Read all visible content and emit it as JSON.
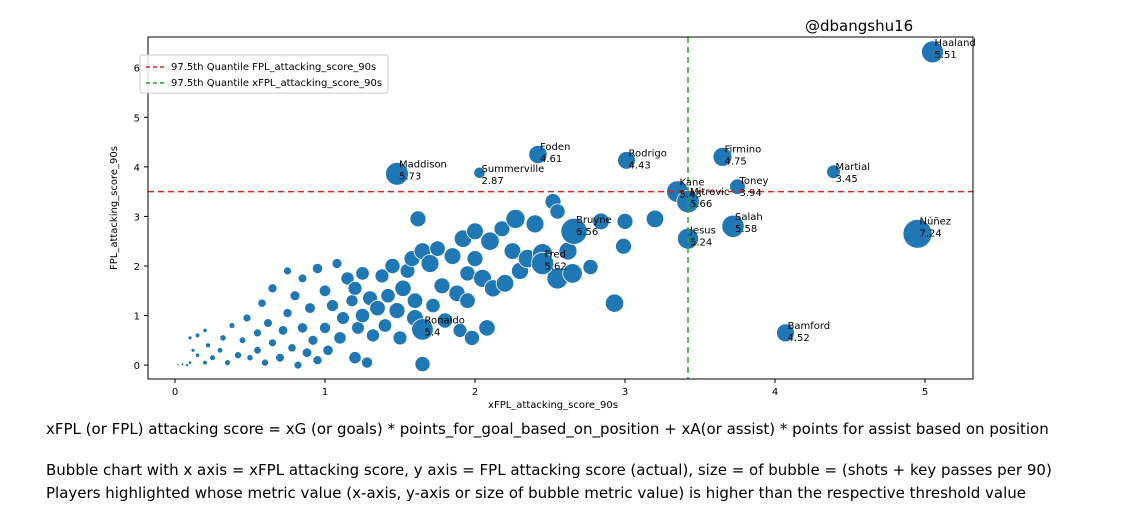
{
  "credit": "@dbangshu16",
  "notes": {
    "formula": "xFPL (or FPL) attacking score = xG (or goals) * points_for_goal_based_on_position + xA(or assist) * points for assist based on position",
    "desc1": "Bubble chart with x axis = xFPL attacking score, y axis = FPL attacking score (actual), size = of bubble = (shots + key passes per 90)",
    "desc2": "Players highlighted whose metric value (x-axis, y-axis or size of bubble metric value) is higher than the respective threshold value"
  },
  "chart_data": {
    "type": "scatter",
    "xlabel": "xFPL_attacking_score_90s",
    "ylabel": "FPL_attacking_score_90s",
    "xlim": [
      -0.18,
      5.32
    ],
    "ylim": [
      -0.28,
      6.62
    ],
    "xticks": [
      0,
      1,
      2,
      3,
      4,
      5
    ],
    "yticks": [
      0,
      1,
      2,
      3,
      4,
      5,
      6
    ],
    "grid": false,
    "legend_position": "top-left",
    "colors": {
      "bubble": "#1f77b4",
      "fpl_threshold": "#d62728",
      "xfpl_threshold": "#2ca02c"
    },
    "thresholds": [
      {
        "name": "97.5th Quantile FPL_attacking_score_90s",
        "axis": "y",
        "value": 3.5,
        "color": "#d62728"
      },
      {
        "name": "97.5th Quantile xFPL_attacking_score_90s",
        "axis": "x",
        "value": 3.42,
        "color": "#2ca02c"
      }
    ],
    "labeled_points": [
      {
        "player": "Haaland",
        "x": 5.05,
        "y": 6.32,
        "size": 5.51
      },
      {
        "player": "Foden",
        "x": 2.42,
        "y": 4.25,
        "size": 4.61
      },
      {
        "player": "Rodrigo",
        "x": 3.01,
        "y": 4.13,
        "size": 4.43
      },
      {
        "player": "Maddison",
        "x": 1.48,
        "y": 3.86,
        "size": 5.73
      },
      {
        "player": "Summerville",
        "x": 2.03,
        "y": 3.88,
        "size": 2.87
      },
      {
        "player": "Firmino",
        "x": 3.65,
        "y": 4.2,
        "size": 4.75
      },
      {
        "player": "Martial",
        "x": 4.39,
        "y": 3.9,
        "size": 3.45
      },
      {
        "player": "Toney",
        "x": 3.75,
        "y": 3.6,
        "size": 3.94
      },
      {
        "player": "Kane",
        "x": 3.35,
        "y": 3.5,
        "size": 5.45
      },
      {
        "player": "Mitrovic",
        "x": 3.42,
        "y": 3.3,
        "size": 5.66
      },
      {
        "player": "Salah",
        "x": 3.72,
        "y": 2.8,
        "size": 5.58
      },
      {
        "player": "Jesus",
        "x": 3.42,
        "y": 2.55,
        "size": 5.24
      },
      {
        "player": "Núñez",
        "x": 4.95,
        "y": 2.65,
        "size": 7.24
      },
      {
        "player": "Bruyne",
        "x": 2.66,
        "y": 2.7,
        "size": 6.56
      },
      {
        "player": "Fred",
        "x": 2.45,
        "y": 2.05,
        "size": 5.62
      },
      {
        "player": "Bamford",
        "x": 4.07,
        "y": 0.65,
        "size": 4.52
      },
      {
        "player": "Ronaldo",
        "x": 1.65,
        "y": 0.72,
        "size": 5.4
      }
    ],
    "other_points": [
      [
        0.02,
        0.01,
        0.6
      ],
      [
        0.05,
        0.02,
        0.7
      ],
      [
        0.08,
        0.0,
        0.8
      ],
      [
        0.1,
        0.05,
        0.9
      ],
      [
        0.12,
        0.3,
        1.0
      ],
      [
        0.15,
        0.2,
        1.1
      ],
      [
        0.1,
        0.55,
        1.0
      ],
      [
        0.15,
        0.6,
        1.2
      ],
      [
        0.2,
        0.05,
        1.2
      ],
      [
        0.22,
        0.4,
        1.3
      ],
      [
        0.25,
        0.15,
        1.5
      ],
      [
        0.2,
        0.7,
        1.1
      ],
      [
        0.3,
        0.3,
        1.4
      ],
      [
        0.32,
        0.55,
        1.6
      ],
      [
        0.35,
        0.05,
        1.5
      ],
      [
        0.38,
        0.8,
        1.5
      ],
      [
        0.42,
        0.2,
        1.8
      ],
      [
        0.45,
        0.5,
        1.7
      ],
      [
        0.48,
        0.95,
        2.0
      ],
      [
        0.5,
        0.15,
        1.6
      ],
      [
        0.55,
        0.65,
        2.0
      ],
      [
        0.55,
        0.3,
        1.9
      ],
      [
        0.58,
        1.25,
        2.1
      ],
      [
        0.6,
        0.05,
        1.8
      ],
      [
        0.62,
        0.85,
        2.2
      ],
      [
        0.65,
        0.45,
        2.0
      ],
      [
        0.65,
        1.55,
        2.3
      ],
      [
        0.7,
        0.15,
        2.2
      ],
      [
        0.72,
        0.7,
        2.4
      ],
      [
        0.75,
        1.05,
        2.3
      ],
      [
        0.75,
        1.9,
        2.0
      ],
      [
        0.78,
        0.35,
        2.1
      ],
      [
        0.8,
        1.4,
        2.5
      ],
      [
        0.82,
        0.0,
        2.0
      ],
      [
        0.85,
        0.75,
        2.6
      ],
      [
        0.85,
        1.75,
        2.2
      ],
      [
        0.88,
        0.25,
        2.4
      ],
      [
        0.9,
        1.15,
        2.7
      ],
      [
        0.92,
        0.5,
        2.5
      ],
      [
        0.95,
        1.95,
        2.6
      ],
      [
        0.95,
        0.1,
        2.3
      ],
      [
        1.0,
        1.5,
        2.9
      ],
      [
        1.0,
        0.75,
        2.8
      ],
      [
        1.02,
        0.3,
        2.6
      ],
      [
        1.05,
        1.2,
        3.0
      ],
      [
        1.08,
        2.05,
        2.5
      ],
      [
        1.1,
        0.55,
        3.1
      ],
      [
        1.12,
        0.95,
        3.2
      ],
      [
        1.15,
        1.75,
        3.3
      ],
      [
        1.18,
        1.3,
        3.0
      ],
      [
        1.2,
        0.15,
        3.1
      ],
      [
        1.2,
        1.55,
        3.5
      ],
      [
        1.22,
        0.75,
        3.2
      ],
      [
        1.25,
        1.0,
        3.6
      ],
      [
        1.25,
        1.85,
        3.4
      ],
      [
        1.28,
        0.05,
        2.8
      ],
      [
        1.3,
        1.35,
        3.7
      ],
      [
        1.32,
        0.6,
        3.3
      ],
      [
        1.35,
        1.15,
        3.9
      ],
      [
        1.38,
        1.8,
        3.5
      ],
      [
        1.4,
        0.8,
        3.4
      ],
      [
        1.42,
        1.4,
        3.6
      ],
      [
        1.45,
        2.0,
        3.8
      ],
      [
        1.48,
        1.1,
        4.0
      ],
      [
        1.5,
        0.55,
        3.5
      ],
      [
        1.52,
        1.55,
        4.1
      ],
      [
        1.55,
        1.9,
        3.7
      ],
      [
        1.58,
        2.15,
        4.0
      ],
      [
        1.6,
        0.95,
        4.2
      ],
      [
        1.6,
        1.3,
        3.9
      ],
      [
        1.62,
        2.95,
        4.0
      ],
      [
        1.65,
        2.3,
        4.2
      ],
      [
        1.65,
        0.02,
        3.8
      ],
      [
        1.7,
        2.05,
        4.5
      ],
      [
        1.72,
        1.2,
        3.6
      ],
      [
        1.75,
        2.35,
        3.9
      ],
      [
        1.78,
        1.6,
        4.0
      ],
      [
        1.8,
        0.9,
        3.8
      ],
      [
        1.85,
        2.2,
        4.2
      ],
      [
        1.88,
        1.45,
        4.1
      ],
      [
        1.9,
        0.7,
        3.5
      ],
      [
        1.92,
        2.55,
        4.4
      ],
      [
        1.95,
        1.85,
        3.8
      ],
      [
        1.95,
        1.3,
        3.9
      ],
      [
        1.98,
        0.55,
        3.8
      ],
      [
        2.0,
        2.15,
        4.0
      ],
      [
        2.0,
        2.7,
        4.2
      ],
      [
        2.05,
        1.75,
        4.5
      ],
      [
        2.08,
        0.75,
        4.1
      ],
      [
        2.1,
        2.5,
        4.6
      ],
      [
        2.12,
        1.55,
        4.3
      ],
      [
        2.18,
        2.75,
        4.0
      ],
      [
        2.2,
        1.65,
        4.4
      ],
      [
        2.25,
        2.3,
        4.2
      ],
      [
        2.27,
        2.95,
        4.8
      ],
      [
        2.3,
        1.9,
        4.3
      ],
      [
        2.35,
        2.15,
        4.6
      ],
      [
        2.4,
        2.85,
        4.5
      ],
      [
        2.45,
        2.25,
        5.0
      ],
      [
        2.52,
        3.3,
        4.0
      ],
      [
        2.55,
        3.1,
        3.8
      ],
      [
        2.55,
        1.75,
        5.3
      ],
      [
        2.62,
        2.3,
        4.5
      ],
      [
        2.65,
        1.85,
        4.9
      ],
      [
        2.77,
        1.98,
        3.8
      ],
      [
        2.84,
        2.9,
        4.2
      ],
      [
        2.93,
        1.25,
        4.6
      ],
      [
        2.99,
        2.4,
        4.0
      ],
      [
        3.0,
        2.9,
        4.0
      ],
      [
        3.2,
        2.95,
        4.4
      ]
    ]
  }
}
